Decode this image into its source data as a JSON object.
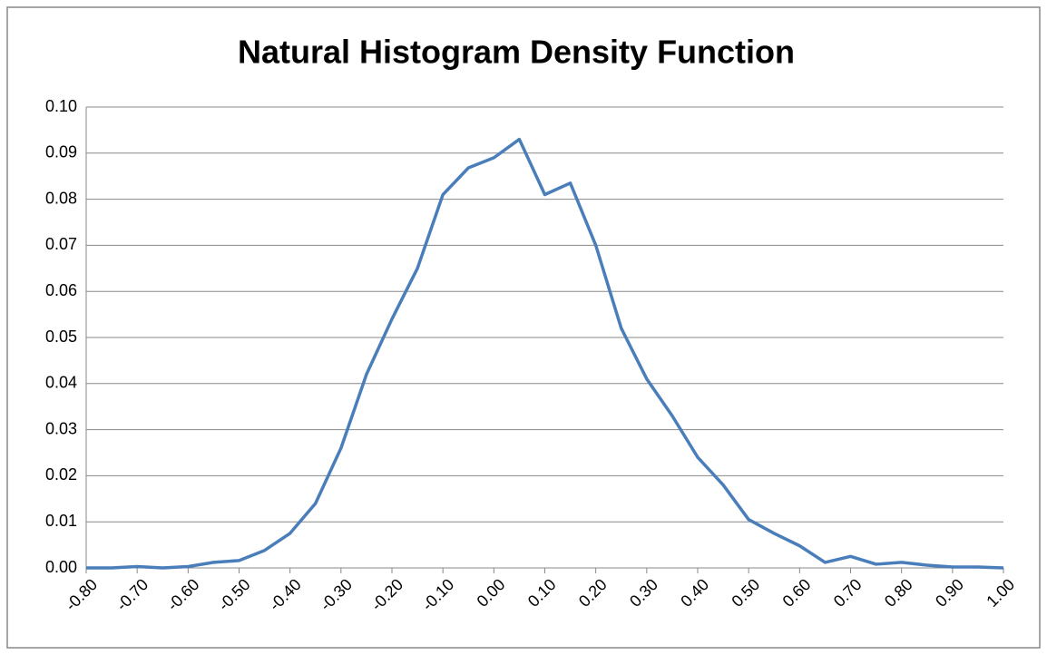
{
  "chart_data": {
    "type": "line",
    "title": "Natural Histogram Density Function",
    "x": [
      -0.8,
      -0.75,
      -0.7,
      -0.65,
      -0.6,
      -0.55,
      -0.5,
      -0.45,
      -0.4,
      -0.35,
      -0.3,
      -0.25,
      -0.2,
      -0.15,
      -0.1,
      -0.05,
      0,
      0.05,
      0.1,
      0.15,
      0.2,
      0.25,
      0.3,
      0.35,
      0.4,
      0.45,
      0.5,
      0.55,
      0.6,
      0.65,
      0.7,
      0.75,
      0.8,
      0.85,
      0.9,
      0.95,
      1.0
    ],
    "series": [
      {
        "color": "#4a7ebb",
        "values": [
          0,
          0,
          0.0003,
          0,
          0.0003,
          0.0012,
          0.0016,
          0.0038,
          0.0075,
          0.014,
          0.026,
          0.042,
          0.054,
          0.065,
          0.081,
          0.0868,
          0.089,
          0.093,
          0.081,
          0.0835,
          0.07,
          0.052,
          0.041,
          0.033,
          0.024,
          0.018,
          0.0105,
          0.0075,
          0.0048,
          0.0012,
          0.0025,
          0.0008,
          0.0012,
          0.0006,
          0.0002,
          0.0002,
          0
        ]
      }
    ],
    "xlim": [
      -0.8,
      1.0
    ],
    "xticks": [
      {
        "value": -0.8,
        "label": "-0.80"
      },
      {
        "value": -0.7,
        "label": "-0.70"
      },
      {
        "value": -0.6,
        "label": "-0.60"
      },
      {
        "value": -0.5,
        "label": "-0.50"
      },
      {
        "value": -0.4,
        "label": "-0.40"
      },
      {
        "value": -0.3,
        "label": "-0.30"
      },
      {
        "value": -0.2,
        "label": "-0.20"
      },
      {
        "value": -0.1,
        "label": "-0.10"
      },
      {
        "value": 0,
        "label": "0.00"
      },
      {
        "value": 0.1,
        "label": "0.10"
      },
      {
        "value": 0.2,
        "label": "0.20"
      },
      {
        "value": 0.3,
        "label": "0.30"
      },
      {
        "value": 0.4,
        "label": "0.40"
      },
      {
        "value": 0.5,
        "label": "0.50"
      },
      {
        "value": 0.6,
        "label": "0.60"
      },
      {
        "value": 0.7,
        "label": "0.70"
      },
      {
        "value": 0.8,
        "label": "0.80"
      },
      {
        "value": 0.9,
        "label": "0.90"
      },
      {
        "value": 1.0,
        "label": "1.00"
      }
    ],
    "ylim": [
      0,
      0.1
    ],
    "yticks": [
      {
        "value": 0,
        "label": "0.00"
      },
      {
        "value": 0.01,
        "label": "0.01"
      },
      {
        "value": 0.02,
        "label": "0.02"
      },
      {
        "value": 0.03,
        "label": "0.03"
      },
      {
        "value": 0.04,
        "label": "0.04"
      },
      {
        "value": 0.05,
        "label": "0.05"
      },
      {
        "value": 0.06,
        "label": "0.06"
      },
      {
        "value": 0.07,
        "label": "0.07"
      },
      {
        "value": 0.08,
        "label": "0.08"
      },
      {
        "value": 0.09,
        "label": "0.09"
      },
      {
        "value": 0.1,
        "label": "0.10"
      }
    ],
    "grid": true
  }
}
